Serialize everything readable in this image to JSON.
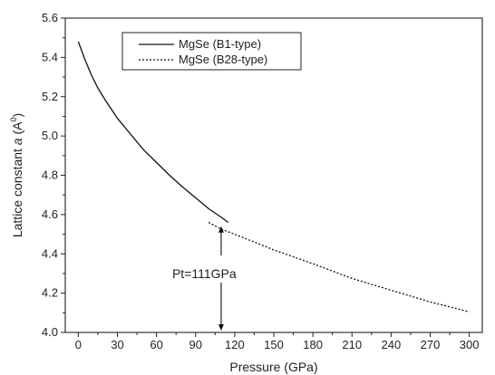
{
  "chart_data": {
    "type": "line",
    "xlabel": "Pressure (GPa)",
    "ylabel": "Lattice constant a (A°)",
    "ylabel_parts": {
      "prefix": "Lattice constant ",
      "italic": "a",
      "unit": " (A",
      "sup": "0",
      "close": ")"
    },
    "xlim": [
      -10,
      310
    ],
    "ylim": [
      4.0,
      5.6
    ],
    "xticks": [
      0,
      30,
      60,
      90,
      120,
      150,
      180,
      210,
      240,
      270,
      300
    ],
    "yticks": [
      4.0,
      4.2,
      4.4,
      4.6,
      4.8,
      5.0,
      5.2,
      5.4,
      5.6
    ],
    "xtick_labels": [
      "0",
      "30",
      "60",
      "90",
      "120",
      "150",
      "180",
      "210",
      "240",
      "270",
      "300"
    ],
    "ytick_labels": [
      "4.0",
      "4.2",
      "4.4",
      "4.6",
      "4.8",
      "5.0",
      "5.2",
      "5.4",
      "5.6"
    ],
    "legend_position": "top-center",
    "series": [
      {
        "name": "MgSe (B1-type)",
        "style": "solid",
        "color": "#111111",
        "x": [
          0,
          5,
          10,
          15,
          20,
          30,
          40,
          50,
          60,
          70,
          80,
          90,
          100,
          110,
          115
        ],
        "y": [
          5.48,
          5.39,
          5.31,
          5.245,
          5.19,
          5.09,
          5.01,
          4.93,
          4.865,
          4.8,
          4.74,
          4.685,
          4.63,
          4.585,
          4.56
        ]
      },
      {
        "name": "MgSe (B28-type)",
        "style": "dotted",
        "color": "#111111",
        "x": [
          100,
          110,
          120,
          150,
          180,
          210,
          240,
          270,
          300
        ],
        "y": [
          4.56,
          4.525,
          4.5,
          4.42,
          4.35,
          4.275,
          4.215,
          4.155,
          4.105
        ]
      }
    ],
    "annotation": {
      "text": "Pt=111GPa",
      "x": 111,
      "arrow_up_to": 4.55,
      "arrow_down_to": 4.0
    }
  }
}
